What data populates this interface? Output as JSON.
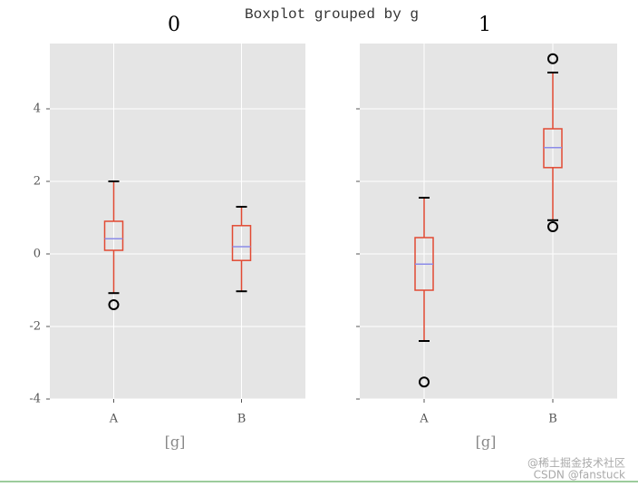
{
  "title": "Boxplot grouped by g",
  "watermark": [
    "@稀土掘金技术社区",
    "CSDN @fanstuck"
  ],
  "chart_data": [
    {
      "type": "box",
      "title": "0",
      "xlabel": "[g]",
      "categories": [
        "A",
        "B"
      ],
      "boxes": [
        {
          "whislo": -1.08,
          "q1": 0.1,
          "med": 0.42,
          "q3": 0.9,
          "whishi": 2.0,
          "fliers": [
            -1.4
          ]
        },
        {
          "whislo": -1.03,
          "q1": -0.18,
          "med": 0.2,
          "q3": 0.78,
          "whishi": 1.3,
          "fliers": []
        }
      ],
      "box_color": "#E24A33",
      "median_color": "#8B8BE8",
      "cap_color": "#000000",
      "ylim": [
        -4,
        5.8
      ],
      "yticks": [
        -4,
        -2,
        0,
        2,
        4
      ],
      "ytick_labels": true,
      "grid": true,
      "background": "#E5E5E5"
    },
    {
      "type": "box",
      "title": "1",
      "xlabel": "[g]",
      "categories": [
        "A",
        "B"
      ],
      "boxes": [
        {
          "whislo": -2.4,
          "q1": -1.0,
          "med": -0.28,
          "q3": 0.45,
          "whishi": 1.55,
          "fliers": [
            -3.53
          ]
        },
        {
          "whislo": 0.93,
          "q1": 2.38,
          "med": 2.93,
          "q3": 3.45,
          "whishi": 5.0,
          "fliers": [
            0.75,
            5.38
          ]
        }
      ],
      "box_color": "#E24A33",
      "median_color": "#8B8BE8",
      "cap_color": "#000000",
      "ylim": [
        -4,
        5.8
      ],
      "yticks": [
        -4,
        -2,
        0,
        2,
        4
      ],
      "ytick_labels": false,
      "grid": true,
      "background": "#E5E5E5"
    }
  ]
}
